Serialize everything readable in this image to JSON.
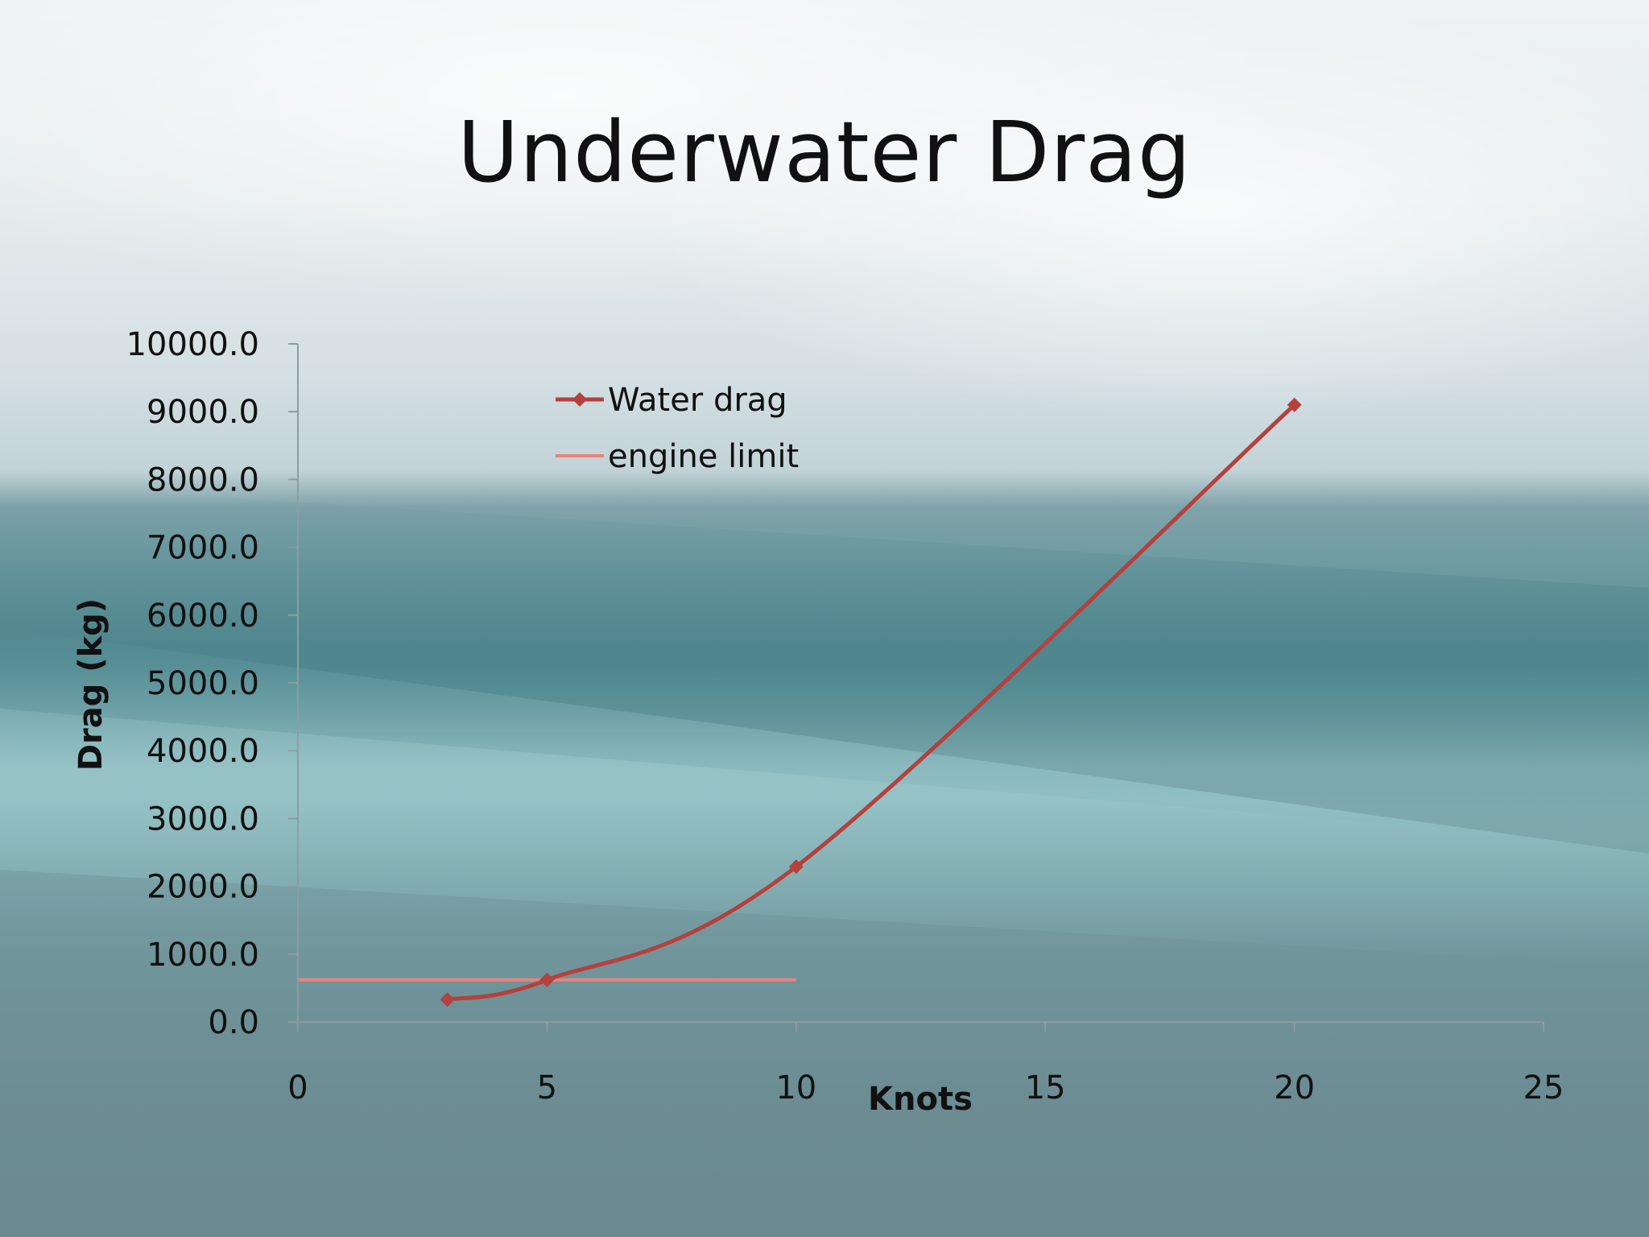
{
  "slide": {
    "title": "Underwater Drag"
  },
  "colors": {
    "water_drag": "#b5403d",
    "engine_limit": "#e8837c",
    "axis": "#8a9ea2",
    "text": "#111111"
  },
  "chart_data": {
    "type": "line",
    "title": "",
    "xlabel": "Knots",
    "ylabel": "Drag (kg)",
    "xlim": [
      0,
      25
    ],
    "ylim": [
      0,
      10000
    ],
    "x_ticks": [
      "0",
      "5",
      "10",
      "15",
      "20",
      "25"
    ],
    "y_ticks": [
      "0.0",
      "1000.0",
      "2000.0",
      "3000.0",
      "4000.0",
      "5000.0",
      "6000.0",
      "7000.0",
      "8000.0",
      "9000.0",
      "10000.0"
    ],
    "grid": false,
    "legend_position": "top-center",
    "series": [
      {
        "name": "Water drag",
        "x": [
          3,
          5,
          10,
          20
        ],
        "y": [
          330,
          620,
          2290,
          9100
        ],
        "marker": "diamond",
        "smooth": true
      },
      {
        "name": "engine limit",
        "x": [
          0,
          10
        ],
        "y": [
          620,
          620
        ],
        "marker": "none",
        "smooth": false
      }
    ]
  }
}
